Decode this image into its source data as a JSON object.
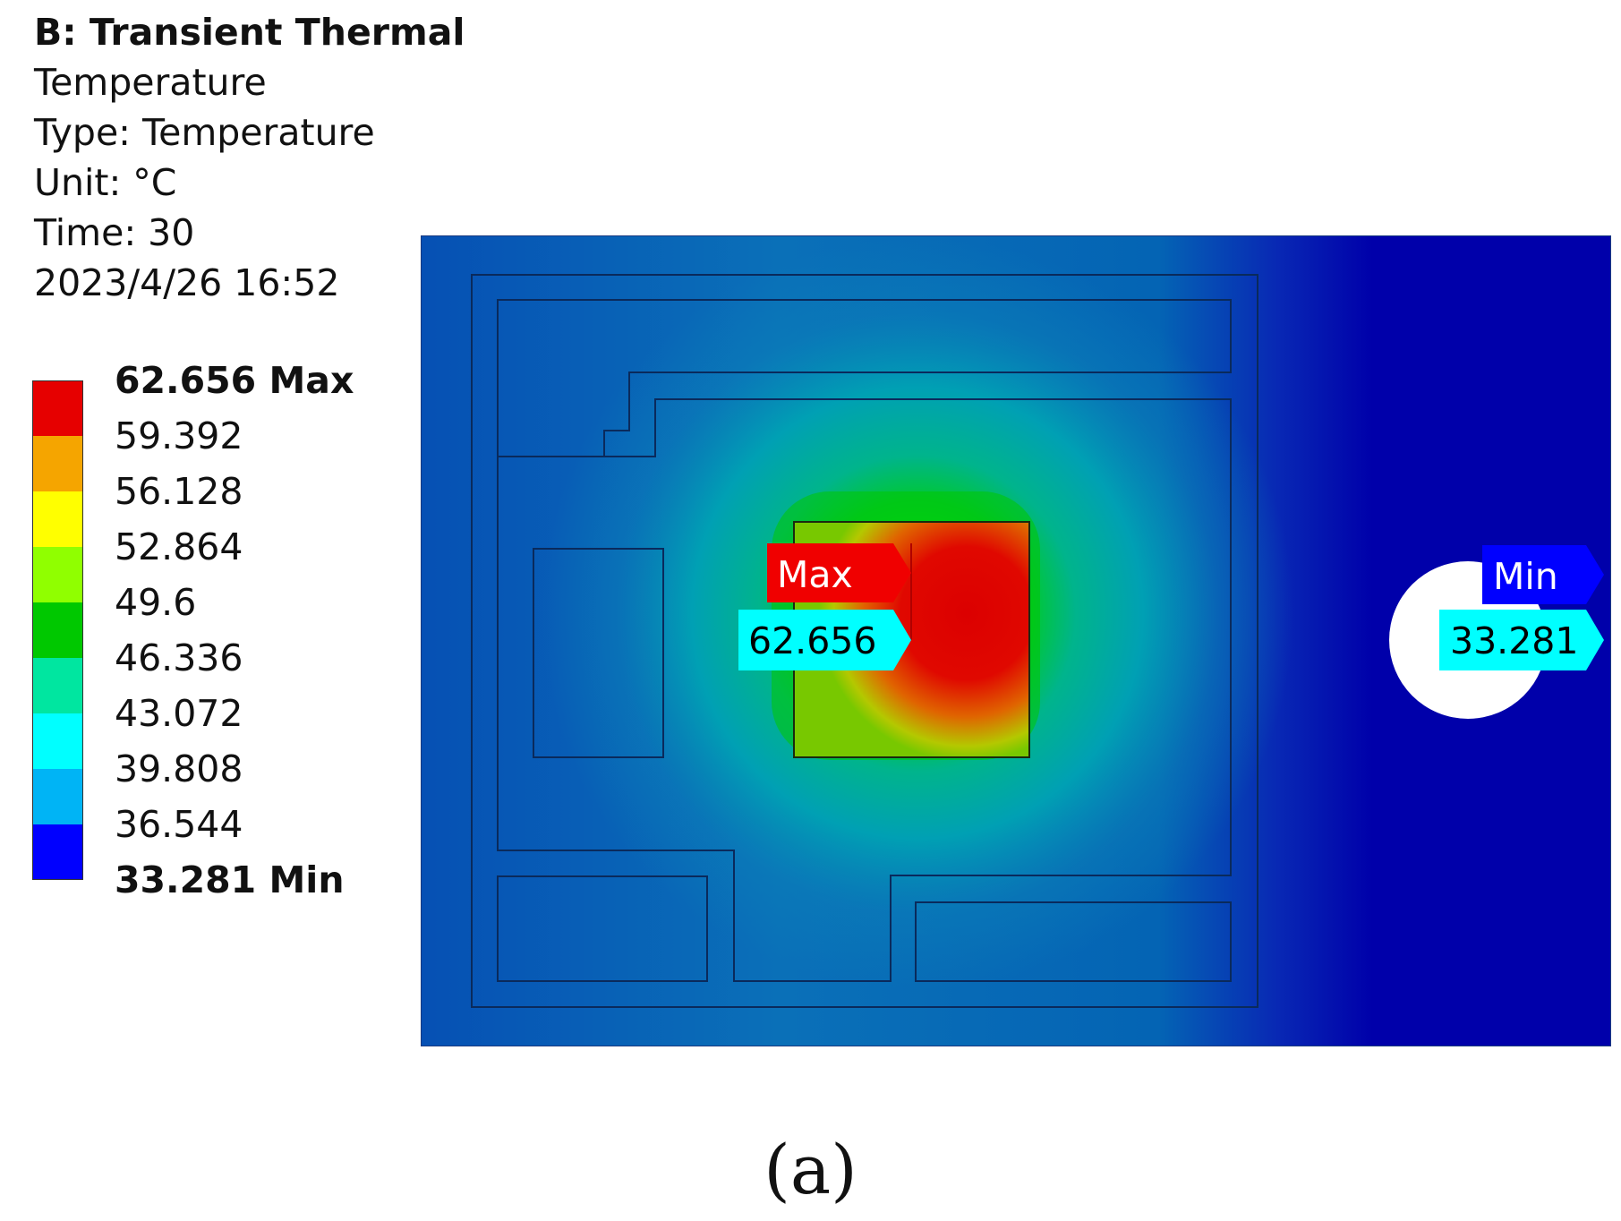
{
  "header": {
    "analysis": "B: Transient Thermal",
    "result_name": "Temperature",
    "type_line": "Type: Temperature",
    "unit_line": "Unit: °C",
    "time_line": "Time: 30",
    "timestamp": "2023/4/26 16:52"
  },
  "legend": {
    "labels": [
      "62.656 Max",
      "59.392",
      "56.128",
      "52.864",
      "49.6",
      "46.336",
      "43.072",
      "39.808",
      "36.544",
      "33.281 Min"
    ],
    "colors": [
      "#e60000",
      "#f5a500",
      "#ffff00",
      "#90ff00",
      "#00c800",
      "#00e6a0",
      "#00ffff",
      "#00b4f5",
      "#0000ff"
    ]
  },
  "contour": {
    "max_probe": {
      "label": "Max",
      "value": "62.656"
    },
    "min_probe": {
      "label": "Min",
      "value": "33.281"
    }
  },
  "caption": "(a)"
}
